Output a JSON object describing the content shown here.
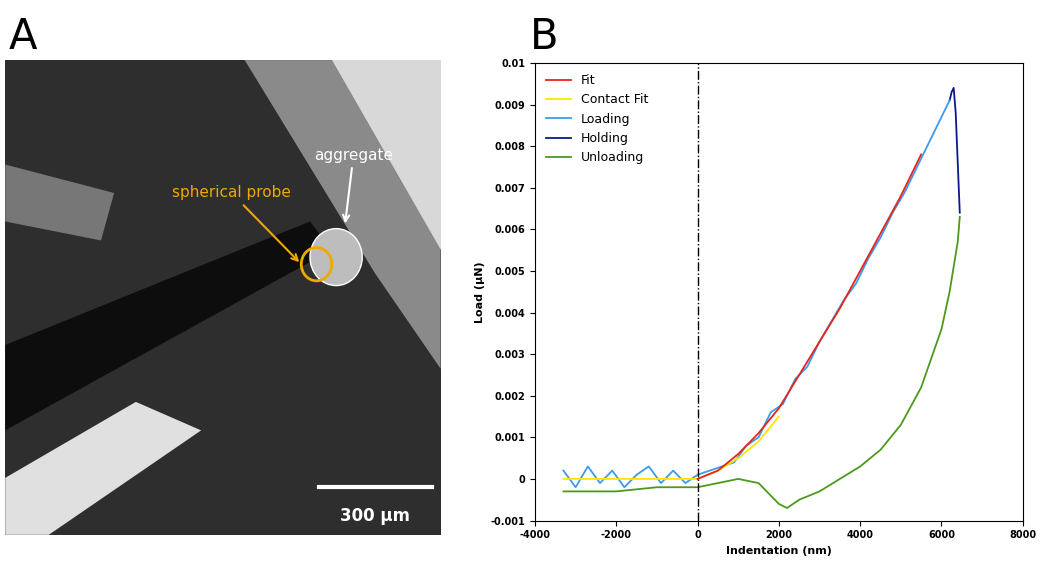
{
  "panel_labels": [
    "A",
    "B"
  ],
  "image": {
    "annotations": [
      "spherical probe",
      "aggregate"
    ],
    "scale_bar": "300 µm"
  },
  "chart_data": {
    "type": "line",
    "x_label": "Indentation (nm)",
    "y_label": "Load (µN)",
    "xlim": [
      -4000,
      8000
    ],
    "xticks": [
      -4000,
      -2000,
      0,
      2000,
      4000,
      6000,
      8000
    ],
    "ylim": [
      -0.001,
      0.01
    ],
    "yticks": [
      -0.001,
      0,
      0.001,
      0.002,
      0.003,
      0.004,
      0.005,
      0.006,
      0.007,
      0.008,
      0.009,
      0.01
    ],
    "vline_x": 0,
    "legend": "upper left",
    "grid": false,
    "series": [
      {
        "name": "Fit",
        "color": "#e8231a",
        "x": [
          0,
          500,
          1000,
          1500,
          2000,
          2500,
          3000,
          3500,
          4000,
          4500,
          5000,
          5500
        ],
        "values": [
          0,
          0.0002,
          0.0006,
          0.0011,
          0.0017,
          0.0025,
          0.0033,
          0.0041,
          0.005,
          0.0059,
          0.0068,
          0.0078
        ]
      },
      {
        "name": "Contact Fit",
        "color": "#ffe600",
        "x": [
          -3300,
          0,
          500,
          1000,
          1500,
          2000
        ],
        "values": [
          0,
          0,
          0.0002,
          0.0005,
          0.0009,
          0.0015
        ]
      },
      {
        "name": "Loading",
        "color": "#3a9bf0",
        "x": [
          -3300,
          -3000,
          -2700,
          -2400,
          -2100,
          -1800,
          -1500,
          -1200,
          -900,
          -600,
          -300,
          0,
          300,
          600,
          900,
          1200,
          1500,
          1800,
          2100,
          2400,
          2700,
          3000,
          3300,
          3600,
          3900,
          4200,
          4500,
          4800,
          5100,
          5400,
          5700,
          6000,
          6200
        ],
        "values": [
          0.0002,
          -0.0002,
          0.0003,
          -0.0001,
          0.0002,
          -0.0002,
          0.0001,
          0.0003,
          -0.0001,
          0.0002,
          -0.0001,
          0.0001,
          0.0002,
          0.0003,
          0.0004,
          0.0008,
          0.001,
          0.0016,
          0.0018,
          0.0024,
          0.0027,
          0.0033,
          0.0038,
          0.0043,
          0.0047,
          0.0053,
          0.0058,
          0.0064,
          0.0069,
          0.0075,
          0.0081,
          0.0087,
          0.0091
        ]
      },
      {
        "name": "Holding",
        "color": "#0a1a8c",
        "x": [
          6200,
          6250,
          6300,
          6350,
          6400,
          6450
        ],
        "values": [
          0.0091,
          0.0093,
          0.0094,
          0.0088,
          0.0076,
          0.0064
        ]
      },
      {
        "name": "Unloading",
        "color": "#4c9a1c",
        "x": [
          6450,
          6400,
          6200,
          6000,
          5500,
          5000,
          4500,
          4000,
          3500,
          3000,
          2500,
          2200,
          2000,
          1700,
          1500,
          1000,
          500,
          0,
          -1000,
          -2000,
          -3300
        ],
        "values": [
          0.0063,
          0.0057,
          0.0045,
          0.0036,
          0.0022,
          0.0013,
          0.0007,
          0.0003,
          0.0,
          -0.0003,
          -0.0005,
          -0.0007,
          -0.0006,
          -0.0003,
          -0.0001,
          0.0,
          -0.0001,
          -0.0002,
          -0.0002,
          -0.0003,
          -0.0003
        ]
      }
    ]
  }
}
